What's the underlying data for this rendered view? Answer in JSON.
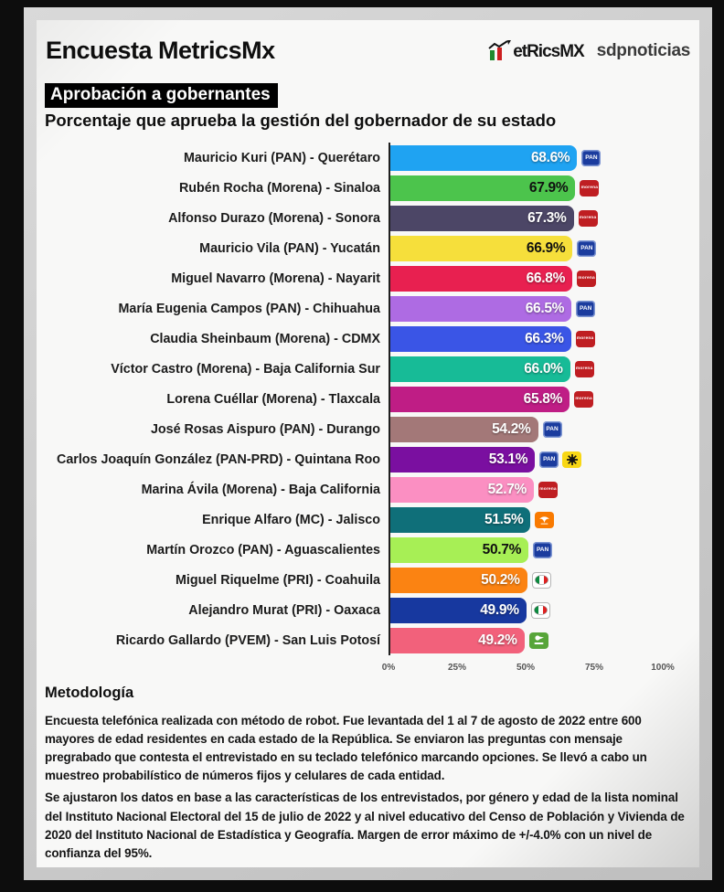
{
  "header": {
    "title": "Encuesta MetricsMx",
    "logo_wordmark": "etRicsMX",
    "partner": "sdpnoticias"
  },
  "banner": {
    "badge": "Aprobación a gobernantes",
    "subtitle": "Porcentaje que aprueba la gestión del gobernador de su estado"
  },
  "chart_data": {
    "type": "bar",
    "orientation": "horizontal",
    "xlim": [
      0,
      100
    ],
    "ticks": [
      "0%",
      "25%",
      "50%",
      "75%",
      "100%"
    ],
    "grid": false,
    "rows": [
      {
        "label": "Mauricio Kuri (PAN) - Querétaro",
        "value": 68.6,
        "display": "68.6%",
        "bar_color": "#1fa3f2",
        "text_color": "white",
        "parties": [
          "PAN"
        ]
      },
      {
        "label": "Rubén Rocha (Morena) - Sinaloa",
        "value": 67.9,
        "display": "67.9%",
        "bar_color": "#4cc44c",
        "text_color": "black",
        "parties": [
          "Morena"
        ]
      },
      {
        "label": "Alfonso Durazo (Morena) - Sonora",
        "value": 67.3,
        "display": "67.3%",
        "bar_color": "#4c4666",
        "text_color": "white",
        "parties": [
          "Morena"
        ]
      },
      {
        "label": "Mauricio Vila (PAN) - Yucatán",
        "value": 66.9,
        "display": "66.9%",
        "bar_color": "#f6df3b",
        "text_color": "black",
        "parties": [
          "PAN"
        ]
      },
      {
        "label": "Miguel Navarro (Morena) - Nayarit",
        "value": 66.8,
        "display": "66.8%",
        "bar_color": "#e82050",
        "text_color": "white",
        "parties": [
          "Morena"
        ]
      },
      {
        "label": "María Eugenia Campos (PAN) - Chihuahua",
        "value": 66.5,
        "display": "66.5%",
        "bar_color": "#ae6be3",
        "text_color": "white",
        "parties": [
          "PAN"
        ]
      },
      {
        "label": "Claudia Sheinbaum (Morena) - CDMX",
        "value": 66.3,
        "display": "66.3%",
        "bar_color": "#3a55e6",
        "text_color": "white",
        "parties": [
          "Morena"
        ]
      },
      {
        "label": "Víctor Castro (Morena) - Baja California Sur",
        "value": 66.0,
        "display": "66.0%",
        "bar_color": "#17bb97",
        "text_color": "white",
        "parties": [
          "Morena"
        ]
      },
      {
        "label": "Lorena Cuéllar (Morena) - Tlaxcala",
        "value": 65.8,
        "display": "65.8%",
        "bar_color": "#bf1d85",
        "text_color": "white",
        "parties": [
          "Morena"
        ]
      },
      {
        "label": "José Rosas Aispuro (PAN) - Durango",
        "value": 54.2,
        "display": "54.2%",
        "bar_color": "#a37878",
        "text_color": "white",
        "parties": [
          "PAN"
        ]
      },
      {
        "label": "Carlos Joaquín González (PAN-PRD) - Quintana Roo",
        "value": 53.1,
        "display": "53.1%",
        "bar_color": "#7a0fa0",
        "text_color": "white",
        "parties": [
          "PAN",
          "PRD"
        ]
      },
      {
        "label": "Marina Ávila (Morena) - Baja California",
        "value": 52.7,
        "display": "52.7%",
        "bar_color": "#fb8fc2",
        "text_color": "white",
        "parties": [
          "Morena"
        ]
      },
      {
        "label": "Enrique Alfaro (MC) - Jalisco",
        "value": 51.5,
        "display": "51.5%",
        "bar_color": "#0f6f79",
        "text_color": "white",
        "parties": [
          "MC"
        ]
      },
      {
        "label": "Martín Orozco (PAN) - Aguascalientes",
        "value": 50.7,
        "display": "50.7%",
        "bar_color": "#a7ef55",
        "text_color": "black",
        "parties": [
          "PAN"
        ]
      },
      {
        "label": "Miguel Riquelme (PRI) - Coahuila",
        "value": 50.2,
        "display": "50.2%",
        "bar_color": "#fb8312",
        "text_color": "white",
        "parties": [
          "PRI"
        ]
      },
      {
        "label": "Alejandro Murat (PRI) - Oaxaca",
        "value": 49.9,
        "display": "49.9%",
        "bar_color": "#17389f",
        "text_color": "white",
        "parties": [
          "PRI"
        ]
      },
      {
        "label": "Ricardo Gallardo (PVEM) - San Luis Potosí",
        "value": 49.2,
        "display": "49.2%",
        "bar_color": "#f2617b",
        "text_color": "white",
        "parties": [
          "PVEM"
        ]
      }
    ]
  },
  "party_logos": {
    "PAN": {
      "bg": "#1b3c9e",
      "label": "PAN"
    },
    "Morena": {
      "bg": "#bf1e22",
      "label": "morena"
    },
    "PRI": {
      "bg": "#ffffff",
      "label": "PRI"
    },
    "PRD": {
      "bg": "#f8d715",
      "label": "PRD"
    },
    "MC": {
      "bg": "#f97a00",
      "label": "MC"
    },
    "PVEM": {
      "bg": "#57a539",
      "label": "PVEM"
    }
  },
  "methodology": {
    "heading": "Metodología",
    "paragraph1": "Encuesta telefónica realizada con método de robot. Fue levantada del 1 al 7 de agosto de 2022 entre 600 mayores de edad residentes en cada estado de la República. Se enviaron las preguntas con mensaje pregrabado que contesta el entrevistado en su teclado telefónico marcando opciones. Se llevó a cabo un muestreo probabilístico de números fijos y celulares de cada entidad.",
    "paragraph2": "Se ajustaron los datos en base a las características de los entrevistados, por género y edad de la lista nominal del Instituto Nacional Electoral del 15 de julio de 2022 y al nivel educativo del Censo de Población y Vivienda de 2020 del Instituto Nacional de Estadística y Geografía. Margen de error máximo de +/-4.0% con un nivel de confianza del 95%."
  }
}
